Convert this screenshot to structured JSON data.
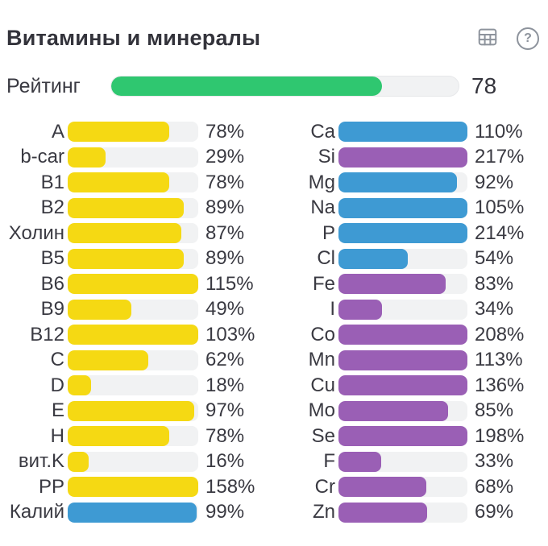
{
  "header": {
    "title": "Витамины и минералы",
    "icons": [
      {
        "name": "table-icon"
      },
      {
        "name": "help-icon",
        "glyph": "?"
      }
    ],
    "icon_color": "#8d939c"
  },
  "rating": {
    "label": "Рейтинг",
    "value": 78,
    "max": 100,
    "color": "#2fc770"
  },
  "palette": {
    "yellow": "#f5d913",
    "blue": "#3e9ad3",
    "purple": "#9a5fb5",
    "track": "#f1f2f3"
  },
  "chart_data": {
    "type": "bar",
    "orientation": "horizontal",
    "title": "Витамины и минералы",
    "unit": "%",
    "bar_scale_max": 100,
    "note": "bar fill = min(value,100)% of track; values above 100% show a full bar",
    "columns": [
      {
        "name": "vitamins",
        "items": [
          {
            "label": "A",
            "value": 78,
            "color": "yellow"
          },
          {
            "label": "b-car",
            "value": 29,
            "color": "yellow"
          },
          {
            "label": "B1",
            "value": 78,
            "color": "yellow"
          },
          {
            "label": "B2",
            "value": 89,
            "color": "yellow"
          },
          {
            "label": "Холин",
            "value": 87,
            "color": "yellow"
          },
          {
            "label": "B5",
            "value": 89,
            "color": "yellow"
          },
          {
            "label": "B6",
            "value": 115,
            "color": "yellow"
          },
          {
            "label": "B9",
            "value": 49,
            "color": "yellow"
          },
          {
            "label": "B12",
            "value": 103,
            "color": "yellow"
          },
          {
            "label": "C",
            "value": 62,
            "color": "yellow"
          },
          {
            "label": "D",
            "value": 18,
            "color": "yellow"
          },
          {
            "label": "E",
            "value": 97,
            "color": "yellow"
          },
          {
            "label": "H",
            "value": 78,
            "color": "yellow"
          },
          {
            "label": "вит.K",
            "value": 16,
            "color": "yellow"
          },
          {
            "label": "PP",
            "value": 158,
            "color": "yellow"
          },
          {
            "label": "Калий",
            "value": 99,
            "color": "blue"
          }
        ]
      },
      {
        "name": "minerals",
        "items": [
          {
            "label": "Ca",
            "value": 110,
            "color": "blue"
          },
          {
            "label": "Si",
            "value": 217,
            "color": "purple"
          },
          {
            "label": "Mg",
            "value": 92,
            "color": "blue"
          },
          {
            "label": "Na",
            "value": 105,
            "color": "blue"
          },
          {
            "label": "P",
            "value": 214,
            "color": "blue"
          },
          {
            "label": "Cl",
            "value": 54,
            "color": "blue"
          },
          {
            "label": "Fe",
            "value": 83,
            "color": "purple"
          },
          {
            "label": "I",
            "value": 34,
            "color": "purple"
          },
          {
            "label": "Co",
            "value": 208,
            "color": "purple"
          },
          {
            "label": "Mn",
            "value": 113,
            "color": "purple"
          },
          {
            "label": "Cu",
            "value": 136,
            "color": "purple"
          },
          {
            "label": "Mo",
            "value": 85,
            "color": "purple"
          },
          {
            "label": "Se",
            "value": 198,
            "color": "purple"
          },
          {
            "label": "F",
            "value": 33,
            "color": "purple"
          },
          {
            "label": "Cr",
            "value": 68,
            "color": "purple"
          },
          {
            "label": "Zn",
            "value": 69,
            "color": "purple"
          }
        ]
      }
    ]
  }
}
